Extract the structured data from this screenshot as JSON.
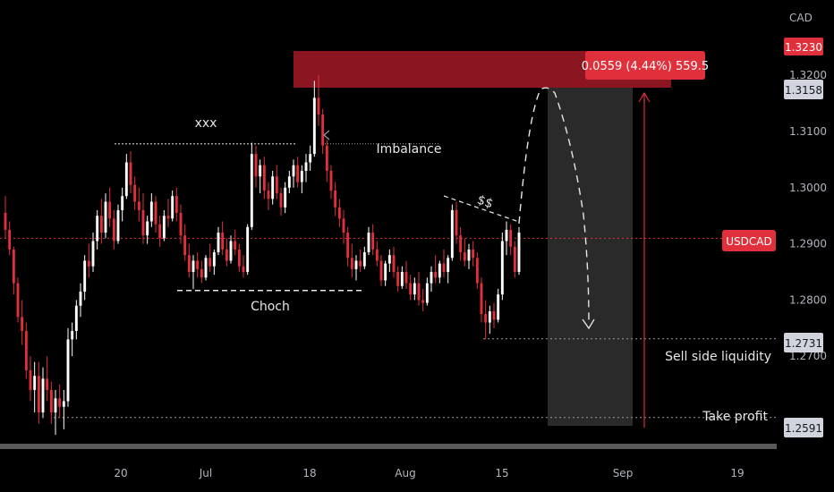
{
  "chart_data": {
    "type": "candlestick",
    "symbol": "USDCAD",
    "currency": "CAD",
    "y_axis": {
      "ticks": [
        "1.3200",
        "1.3100",
        "1.3000",
        "1.2900",
        "1.2800",
        "1.2700"
      ],
      "tick_values": [
        1.32,
        1.31,
        1.3,
        1.29,
        1.28,
        1.27
      ],
      "range": [
        1.2538,
        1.3334
      ]
    },
    "x_axis": {
      "labels": [
        "20",
        "Jul",
        "18",
        "Aug",
        "15",
        "Sep",
        "19"
      ]
    },
    "price_labels": {
      "entry_top": "1.3230",
      "entry": "1.3158",
      "current": "USDCAD",
      "liquidity": "1.2731",
      "take_profit": "1.2591"
    },
    "levels": {
      "current_price": 1.291,
      "stop_zone_top": 1.323,
      "entry": 1.3158,
      "liquidity": 1.2731,
      "take_profit": 1.2591,
      "xxx_level": 1.3078,
      "choch_level": 1.2817
    },
    "measure_label": "0.0559 (4.44%) 559.5",
    "annotations": {
      "xxx": "xxx",
      "imbalance": "Imbalance",
      "choch": "Choch",
      "dollars": "$$",
      "sell_side_liquidity": "Sell side liquidity",
      "take_profit": "Take profit"
    },
    "colors": {
      "up": "#ffffff",
      "down": "#e0303b",
      "current_line": "#e0303b",
      "zone": "#8b1520",
      "target_zone": "#2a2a2a",
      "background": "#000000"
    },
    "candles": [
      [
        1.2955,
        1.2985,
        1.291,
        1.2925
      ],
      [
        1.2925,
        1.294,
        1.288,
        1.289
      ],
      [
        1.289,
        1.2895,
        1.281,
        1.283
      ],
      [
        1.283,
        1.284,
        1.276,
        1.277
      ],
      [
        1.277,
        1.28,
        1.272,
        1.2745
      ],
      [
        1.2745,
        1.276,
        1.266,
        1.2675
      ],
      [
        1.2675,
        1.27,
        1.262,
        1.264
      ],
      [
        1.264,
        1.269,
        1.26,
        1.2665
      ],
      [
        1.2665,
        1.269,
        1.258,
        1.26
      ],
      [
        1.26,
        1.268,
        1.259,
        1.266
      ],
      [
        1.266,
        1.27,
        1.262,
        1.264
      ],
      [
        1.264,
        1.2655,
        1.258,
        1.26
      ],
      [
        1.26,
        1.264,
        1.256,
        1.2625
      ],
      [
        1.2625,
        1.265,
        1.259,
        1.261
      ],
      [
        1.261,
        1.264,
        1.257,
        1.262
      ],
      [
        1.262,
        1.275,
        1.261,
        1.273
      ],
      [
        1.273,
        1.276,
        1.27,
        1.2745
      ],
      [
        1.2745,
        1.28,
        1.273,
        1.279
      ],
      [
        1.279,
        1.283,
        1.277,
        1.2815
      ],
      [
        1.2815,
        1.288,
        1.28,
        1.287
      ],
      [
        1.287,
        1.29,
        1.284,
        1.286
      ],
      [
        1.286,
        1.292,
        1.285,
        1.2905
      ],
      [
        1.2905,
        1.296,
        1.289,
        1.295
      ],
      [
        1.295,
        1.298,
        1.29,
        1.292
      ],
      [
        1.292,
        1.299,
        1.291,
        1.2975
      ],
      [
        1.2975,
        1.3,
        1.293,
        1.2945
      ],
      [
        1.2945,
        1.296,
        1.289,
        1.2905
      ],
      [
        1.2905,
        1.297,
        1.29,
        1.296
      ],
      [
        1.296,
        1.3,
        1.294,
        1.2985
      ],
      [
        1.2985,
        1.306,
        1.298,
        1.3045
      ],
      [
        1.3045,
        1.3065,
        1.299,
        1.3005
      ],
      [
        1.3005,
        1.302,
        1.296,
        1.2975
      ],
      [
        1.2975,
        1.3,
        1.294,
        1.296
      ],
      [
        1.296,
        1.299,
        1.29,
        1.2915
      ],
      [
        1.2915,
        1.295,
        1.29,
        1.294
      ],
      [
        1.294,
        1.299,
        1.293,
        1.2975
      ],
      [
        1.2975,
        1.2985,
        1.292,
        1.2935
      ],
      [
        1.2935,
        1.295,
        1.2895,
        1.291
      ],
      [
        1.291,
        1.296,
        1.2905,
        1.295
      ],
      [
        1.295,
        1.298,
        1.293,
        1.2945
      ],
      [
        1.2945,
        1.2995,
        1.294,
        1.2985
      ],
      [
        1.2985,
        1.3,
        1.294,
        1.2955
      ],
      [
        1.2955,
        1.297,
        1.29,
        1.2915
      ],
      [
        1.2915,
        1.2935,
        1.287,
        1.288
      ],
      [
        1.288,
        1.29,
        1.284,
        1.285
      ],
      [
        1.285,
        1.288,
        1.282,
        1.287
      ],
      [
        1.287,
        1.2885,
        1.284,
        1.2855
      ],
      [
        1.2855,
        1.287,
        1.283,
        1.284
      ],
      [
        1.284,
        1.288,
        1.2835,
        1.2875
      ],
      [
        1.2875,
        1.29,
        1.285,
        1.286
      ],
      [
        1.286,
        1.289,
        1.2845,
        1.2885
      ],
      [
        1.2885,
        1.293,
        1.288,
        1.292
      ],
      [
        1.292,
        1.294,
        1.288,
        1.289
      ],
      [
        1.289,
        1.291,
        1.286,
        1.287
      ],
      [
        1.287,
        1.2915,
        1.2865,
        1.2905
      ],
      [
        1.2905,
        1.2925,
        1.288,
        1.289
      ],
      [
        1.289,
        1.29,
        1.285,
        1.286
      ],
      [
        1.286,
        1.288,
        1.284,
        1.285
      ],
      [
        1.285,
        1.2935,
        1.2845,
        1.293
      ],
      [
        1.293,
        1.308,
        1.2925,
        1.306
      ],
      [
        1.306,
        1.3075,
        1.3,
        1.302
      ],
      [
        1.302,
        1.305,
        1.299,
        1.304
      ],
      [
        1.304,
        1.3055,
        1.298,
        1.2995
      ],
      [
        1.2995,
        1.301,
        1.296,
        1.298
      ],
      [
        1.298,
        1.303,
        1.297,
        1.302
      ],
      [
        1.302,
        1.304,
        1.298,
        1.299
      ],
      [
        1.299,
        1.3,
        1.295,
        1.2965
      ],
      [
        1.2965,
        1.301,
        1.2955,
        1.3
      ],
      [
        1.3,
        1.303,
        1.299,
        1.302
      ],
      [
        1.302,
        1.305,
        1.3,
        1.304
      ],
      [
        1.304,
        1.3055,
        1.3,
        1.301
      ],
      [
        1.301,
        1.304,
        1.299,
        1.303
      ],
      [
        1.303,
        1.306,
        1.301,
        1.3045
      ],
      [
        1.3045,
        1.3075,
        1.303,
        1.306
      ],
      [
        1.306,
        1.319,
        1.3055,
        1.316
      ],
      [
        1.316,
        1.32,
        1.311,
        1.313
      ],
      [
        1.313,
        1.314,
        1.306,
        1.3075
      ],
      [
        1.3075,
        1.3085,
        1.301,
        1.303
      ],
      [
        1.303,
        1.304,
        1.298,
        1.2995
      ],
      [
        1.2995,
        1.301,
        1.295,
        1.2965
      ],
      [
        1.2965,
        1.298,
        1.293,
        1.2945
      ],
      [
        1.2945,
        1.296,
        1.29,
        1.292
      ],
      [
        1.292,
        1.293,
        1.286,
        1.2875
      ],
      [
        1.2875,
        1.29,
        1.284,
        1.2855
      ],
      [
        1.2855,
        1.288,
        1.2835,
        1.287
      ],
      [
        1.287,
        1.289,
        1.285,
        1.286
      ],
      [
        1.286,
        1.2895,
        1.2855,
        1.2885
      ],
      [
        1.2885,
        1.293,
        1.288,
        1.292
      ],
      [
        1.292,
        1.2935,
        1.288,
        1.289
      ],
      [
        1.289,
        1.2905,
        1.286,
        1.287
      ],
      [
        1.287,
        1.288,
        1.2825,
        1.2835
      ],
      [
        1.2835,
        1.287,
        1.2825,
        1.2865
      ],
      [
        1.2865,
        1.289,
        1.285,
        1.288
      ],
      [
        1.288,
        1.2895,
        1.284,
        1.285
      ],
      [
        1.285,
        1.286,
        1.2815,
        1.2825
      ],
      [
        1.2825,
        1.286,
        1.282,
        1.285
      ],
      [
        1.285,
        1.287,
        1.282,
        1.283
      ],
      [
        1.283,
        1.2845,
        1.28,
        1.281
      ],
      [
        1.281,
        1.284,
        1.28,
        1.283
      ],
      [
        1.283,
        1.285,
        1.279,
        1.28
      ],
      [
        1.28,
        1.282,
        1.278,
        1.2795
      ],
      [
        1.2795,
        1.284,
        1.279,
        1.283
      ],
      [
        1.283,
        1.286,
        1.2815,
        1.285
      ],
      [
        1.285,
        1.288,
        1.283,
        1.284
      ],
      [
        1.284,
        1.287,
        1.283,
        1.2865
      ],
      [
        1.2865,
        1.289,
        1.284,
        1.285
      ],
      [
        1.285,
        1.288,
        1.283,
        1.2875
      ],
      [
        1.2875,
        1.297,
        1.287,
        1.296
      ],
      [
        1.296,
        1.2975,
        1.29,
        1.2915
      ],
      [
        1.2915,
        1.293,
        1.287,
        1.2885
      ],
      [
        1.2885,
        1.291,
        1.286,
        1.287
      ],
      [
        1.287,
        1.29,
        1.2855,
        1.289
      ],
      [
        1.289,
        1.2905,
        1.286,
        1.2875
      ],
      [
        1.2875,
        1.2885,
        1.282,
        1.283
      ],
      [
        1.283,
        1.284,
        1.276,
        1.2775
      ],
      [
        1.2775,
        1.28,
        1.273,
        1.276
      ],
      [
        1.276,
        1.279,
        1.274,
        1.278
      ],
      [
        1.278,
        1.2795,
        1.275,
        1.2765
      ],
      [
        1.2765,
        1.282,
        1.276,
        1.281
      ],
      [
        1.281,
        1.292,
        1.28,
        1.2905
      ],
      [
        1.2905,
        1.294,
        1.288,
        1.2925
      ],
      [
        1.2925,
        1.2935,
        1.288,
        1.2895
      ],
      [
        1.2895,
        1.2905,
        1.284,
        1.285
      ],
      [
        1.285,
        1.293,
        1.2845,
        1.292
      ]
    ]
  }
}
